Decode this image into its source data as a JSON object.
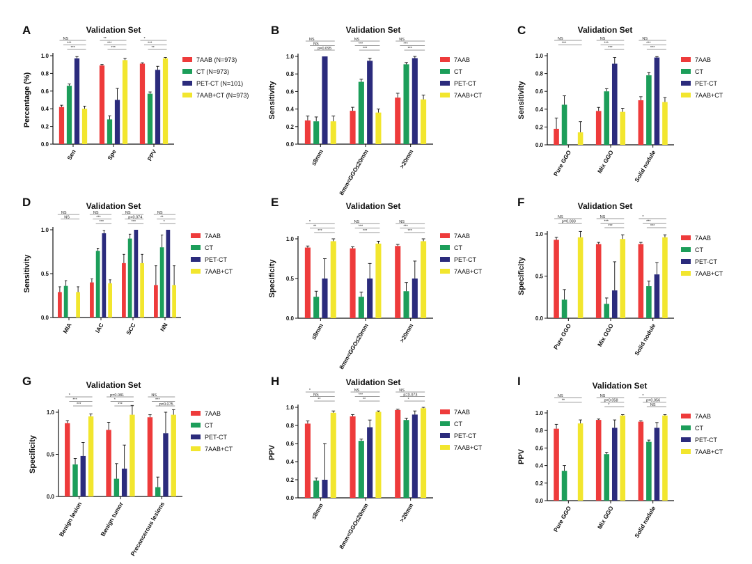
{
  "colors": {
    "7AAB": "#ee3b3b",
    "CT": "#1c9e5a",
    "PET-CT": "#2b2b7c",
    "7AAB+CT": "#f2e62e"
  },
  "chart_data": [
    {
      "panel": "A",
      "type": "bar",
      "title": "Validation Set",
      "ylabel": "Percentage (%)",
      "ylim": [
        0,
        1.0
      ],
      "yticks": [
        "0.0",
        "0.2",
        "0.4",
        "0.6",
        "0.8",
        "1.0"
      ],
      "categories": [
        "Sen",
        "Spe",
        "PPV"
      ],
      "series": [
        {
          "name": "7AAB (N=973)",
          "color_key": "7AAB",
          "values": [
            0.42,
            0.89,
            0.91
          ],
          "errors": [
            0.02,
            0.01,
            0.01
          ]
        },
        {
          "name": "CT (N=973)",
          "color_key": "CT",
          "values": [
            0.66,
            0.28,
            0.57
          ],
          "errors": [
            0.02,
            0.04,
            0.02
          ]
        },
        {
          "name": "PET-CT (N=101)",
          "color_key": "PET-CT",
          "values": [
            0.97,
            0.5,
            0.84
          ],
          "errors": [
            0.02,
            0.13,
            0.04
          ]
        },
        {
          "name": "7AAB+CT (N=973)",
          "color_key": "7AAB+CT",
          "values": [
            0.4,
            0.95,
            0.97
          ],
          "errors": [
            0.03,
            0.02,
            0.01
          ]
        }
      ],
      "significance": [
        [
          "NS",
          "***",
          "***"
        ],
        [
          "**",
          "***",
          "***"
        ],
        [
          "*",
          "***",
          "**"
        ]
      ]
    },
    {
      "panel": "B",
      "type": "bar",
      "title": "Validation Set",
      "ylabel": "Sensitivity",
      "ylim": [
        0,
        1.0
      ],
      "yticks": [
        "0.0",
        "0.2",
        "0.4",
        "0.6",
        "0.8",
        "1.0"
      ],
      "categories": [
        "≤8mm",
        "8mm<GGO≤20mm",
        ">20mm"
      ],
      "series": [
        {
          "name": "7AAB",
          "color_key": "7AAB",
          "values": [
            0.27,
            0.38,
            0.53
          ],
          "errors": [
            0.05,
            0.04,
            0.05
          ]
        },
        {
          "name": "CT",
          "color_key": "CT",
          "values": [
            0.26,
            0.71,
            0.91
          ],
          "errors": [
            0.05,
            0.03,
            0.02
          ]
        },
        {
          "name": "PET-CT",
          "color_key": "PET-CT",
          "values": [
            1.0,
            0.95,
            0.98
          ],
          "errors": [
            0.0,
            0.03,
            0.02
          ]
        },
        {
          "name": "7AAB+CT",
          "color_key": "7AAB+CT",
          "values": [
            0.26,
            0.36,
            0.51
          ],
          "errors": [
            0.06,
            0.04,
            0.05
          ]
        }
      ],
      "significance": [
        [
          "NS",
          "NS",
          "p=0.095"
        ],
        [
          "NS",
          "***",
          "***"
        ],
        [
          "NS",
          "***",
          "***"
        ]
      ]
    },
    {
      "panel": "C",
      "type": "bar",
      "title": "Validation Set",
      "ylabel": "Sensitivity",
      "ylim": [
        0,
        1.0
      ],
      "yticks": [
        "0.0",
        "0.2",
        "0.4",
        "0.6",
        "0.8",
        "1.0"
      ],
      "categories": [
        "Pure GGO",
        "Mix GGO",
        "Solid nodule"
      ],
      "series": [
        {
          "name": "7AAB",
          "color_key": "7AAB",
          "values": [
            0.18,
            0.38,
            0.5
          ],
          "errors": [
            0.12,
            0.04,
            0.04
          ]
        },
        {
          "name": "CT",
          "color_key": "CT",
          "values": [
            0.45,
            0.6,
            0.78
          ],
          "errors": [
            0.1,
            0.03,
            0.03
          ]
        },
        {
          "name": "PET-CT",
          "color_key": "PET-CT",
          "values": [
            null,
            0.91,
            0.98
          ],
          "errors": [
            0,
            0.07,
            0.01
          ]
        },
        {
          "name": "7AAB+CT",
          "color_key": "7AAB+CT",
          "values": [
            0.14,
            0.37,
            0.48
          ],
          "errors": [
            0.12,
            0.04,
            0.05
          ]
        }
      ],
      "significance": [
        [
          "NS",
          "***",
          ""
        ],
        [
          "NS",
          "***",
          "***"
        ],
        [
          "NS",
          "***",
          "***"
        ]
      ]
    },
    {
      "panel": "D",
      "type": "bar",
      "title": "Validation Set",
      "ylabel": "Sensitivity",
      "ylim": [
        0,
        1.0
      ],
      "yticks": [
        "0.0",
        "0.5",
        "1.0"
      ],
      "categories": [
        "MIA",
        "IAC",
        "SCC",
        "NN"
      ],
      "series": [
        {
          "name": "7AAB",
          "color_key": "7AAB",
          "values": [
            0.29,
            0.4,
            0.62,
            0.37
          ],
          "errors": [
            0.06,
            0.04,
            0.1,
            0.22
          ]
        },
        {
          "name": "CT",
          "color_key": "CT",
          "values": [
            0.36,
            0.76,
            0.9,
            0.8
          ],
          "errors": [
            0.06,
            0.03,
            0.05,
            0.14
          ]
        },
        {
          "name": "PET-CT",
          "color_key": "PET-CT",
          "values": [
            null,
            0.96,
            1.0,
            1.0
          ],
          "errors": [
            0,
            0.03,
            0.0,
            0.0
          ]
        },
        {
          "name": "7AAB+CT",
          "color_key": "7AAB+CT",
          "values": [
            0.29,
            0.39,
            0.62,
            0.37
          ],
          "errors": [
            0.06,
            0.04,
            0.1,
            0.22
          ]
        }
      ],
      "significance": [
        [
          "NS",
          "NS",
          ""
        ],
        [
          "NS",
          "***",
          "***"
        ],
        [
          "NS",
          "p=0.074",
          "***"
        ],
        [
          "NS",
          "**",
          "*"
        ]
      ]
    },
    {
      "panel": "E",
      "type": "bar",
      "title": "Validation Set",
      "ylabel": "Specificity",
      "ylim": [
        0,
        1.0
      ],
      "yticks": [
        "0.0",
        "0.5",
        "1.0"
      ],
      "categories": [
        "≤8mm",
        "8mm<GGO≤20mm",
        ">20mm"
      ],
      "series": [
        {
          "name": "7AAB",
          "color_key": "7AAB",
          "values": [
            0.89,
            0.88,
            0.91
          ],
          "errors": [
            0.02,
            0.02,
            0.02
          ]
        },
        {
          "name": "CT",
          "color_key": "CT",
          "values": [
            0.27,
            0.27,
            0.34
          ],
          "errors": [
            0.07,
            0.06,
            0.11
          ]
        },
        {
          "name": "PET-CT",
          "color_key": "PET-CT",
          "values": [
            0.5,
            0.5,
            0.5
          ],
          "errors": [
            0.25,
            0.19,
            0.22
          ]
        },
        {
          "name": "7AAB+CT",
          "color_key": "7AAB+CT",
          "values": [
            0.97,
            0.94,
            0.97
          ],
          "errors": [
            0.03,
            0.03,
            0.03
          ]
        }
      ],
      "significance": [
        [
          "*",
          "**",
          "***"
        ],
        [
          "NS",
          "***",
          "***"
        ],
        [
          "NS",
          "***",
          "***"
        ]
      ]
    },
    {
      "panel": "F",
      "type": "bar",
      "title": "Validation Set",
      "ylabel": "Specificity",
      "ylim": [
        0,
        1.0
      ],
      "yticks": [
        "0.0",
        "0.5",
        "1.0"
      ],
      "categories": [
        "Pure GGO",
        "Mix GGO",
        "Solid nodule"
      ],
      "series": [
        {
          "name": "7AAB",
          "color_key": "7AAB",
          "values": [
            0.93,
            0.88,
            0.88
          ],
          "errors": [
            0.03,
            0.02,
            0.02
          ]
        },
        {
          "name": "CT",
          "color_key": "CT",
          "values": [
            0.22,
            0.17,
            0.38
          ],
          "errors": [
            0.12,
            0.07,
            0.06
          ]
        },
        {
          "name": "PET-CT",
          "color_key": "PET-CT",
          "values": [
            null,
            0.33,
            0.52
          ],
          "errors": [
            0,
            0.34,
            0.14
          ]
        },
        {
          "name": "7AAB+CT",
          "color_key": "7AAB+CT",
          "values": [
            0.96,
            0.94,
            0.96
          ],
          "errors": [
            0.07,
            0.05,
            0.03
          ]
        }
      ],
      "significance": [
        [
          "NS",
          "p=0.083",
          ""
        ],
        [
          "NS",
          "***",
          "***"
        ],
        [
          "*",
          "***",
          "***"
        ]
      ]
    },
    {
      "panel": "G",
      "type": "bar",
      "title": "Validation Set",
      "ylabel": "Specificity",
      "ylim": [
        0,
        1.0
      ],
      "yticks": [
        "0.0",
        "0.5",
        "1.0"
      ],
      "categories": [
        "Benign lesion",
        "Benign tumor",
        "Precancerous lesions"
      ],
      "series": [
        {
          "name": "7AAB",
          "color_key": "7AAB",
          "values": [
            0.87,
            0.79,
            0.94
          ],
          "errors": [
            0.03,
            0.09,
            0.03
          ]
        },
        {
          "name": "CT",
          "color_key": "CT",
          "values": [
            0.38,
            0.21,
            0.11
          ],
          "errors": [
            0.07,
            0.18,
            0.12
          ]
        },
        {
          "name": "PET-CT",
          "color_key": "PET-CT",
          "values": [
            0.48,
            0.33,
            0.75
          ],
          "errors": [
            0.16,
            0.28,
            0.25
          ]
        },
        {
          "name": "7AAB+CT",
          "color_key": "7AAB+CT",
          "values": [
            0.95,
            0.97,
            0.97
          ],
          "errors": [
            0.03,
            0.11,
            0.06
          ]
        }
      ],
      "significance": [
        [
          "*",
          "***",
          "***"
        ],
        [
          "p=0.081",
          "*",
          "***"
        ],
        [
          "NS",
          "***",
          "p=0.075"
        ]
      ]
    },
    {
      "panel": "H",
      "type": "bar",
      "title": "Validation Set",
      "ylabel": "PPV",
      "ylim": [
        0,
        1.0
      ],
      "yticks": [
        "0.0",
        "0.2",
        "0.4",
        "0.6",
        "0.8",
        "1.0"
      ],
      "categories": [
        "≤8mm",
        "8mm<GGO≤20mm",
        ">20mm"
      ],
      "series": [
        {
          "name": "7AAB",
          "color_key": "7AAB",
          "values": [
            0.82,
            0.9,
            0.97
          ],
          "errors": [
            0.03,
            0.02,
            0.01
          ]
        },
        {
          "name": "CT",
          "color_key": "CT",
          "values": [
            0.19,
            0.63,
            0.86
          ],
          "errors": [
            0.03,
            0.02,
            0.02
          ]
        },
        {
          "name": "PET-CT",
          "color_key": "PET-CT",
          "values": [
            0.2,
            0.78,
            0.92
          ],
          "errors": [
            0.4,
            0.08,
            0.04
          ]
        },
        {
          "name": "7AAB+CT",
          "color_key": "7AAB+CT",
          "values": [
            0.94,
            0.95,
            0.99
          ],
          "errors": [
            0.02,
            0.01,
            0.01
          ]
        }
      ],
      "significance": [
        [
          "*",
          "NS",
          "**"
        ],
        [
          "NS",
          "***",
          "**"
        ],
        [
          "NS",
          "p=0.073",
          "*"
        ]
      ]
    },
    {
      "panel": "I",
      "type": "bar",
      "title": "Validation Set",
      "ylabel": "PPV",
      "ylim": [
        0,
        1.0
      ],
      "yticks": [
        "0.0",
        "0.2",
        "0.4",
        "0.6",
        "0.8",
        "1.0"
      ],
      "categories": [
        "Pure GGO",
        "Mix GGO",
        "Solid nodule"
      ],
      "series": [
        {
          "name": "7AAB",
          "color_key": "7AAB",
          "values": [
            0.82,
            0.92,
            0.9
          ],
          "errors": [
            0.05,
            0.01,
            0.01
          ]
        },
        {
          "name": "CT",
          "color_key": "CT",
          "values": [
            0.34,
            0.53,
            0.67
          ],
          "errors": [
            0.06,
            0.02,
            0.02
          ]
        },
        {
          "name": "PET-CT",
          "color_key": "PET-CT",
          "values": [
            null,
            0.83,
            0.83
          ],
          "errors": [
            0,
            0.09,
            0.06
          ]
        },
        {
          "name": "7AAB+CT",
          "color_key": "7AAB+CT",
          "values": [
            0.88,
            0.97,
            0.97
          ],
          "errors": [
            0.04,
            0.01,
            0.01
          ]
        }
      ],
      "significance": [
        [
          "NS",
          "**",
          ""
        ],
        [
          "NS",
          "p=0.058",
          "*"
        ],
        [
          "*",
          "p=0.056",
          "NS"
        ]
      ]
    }
  ]
}
